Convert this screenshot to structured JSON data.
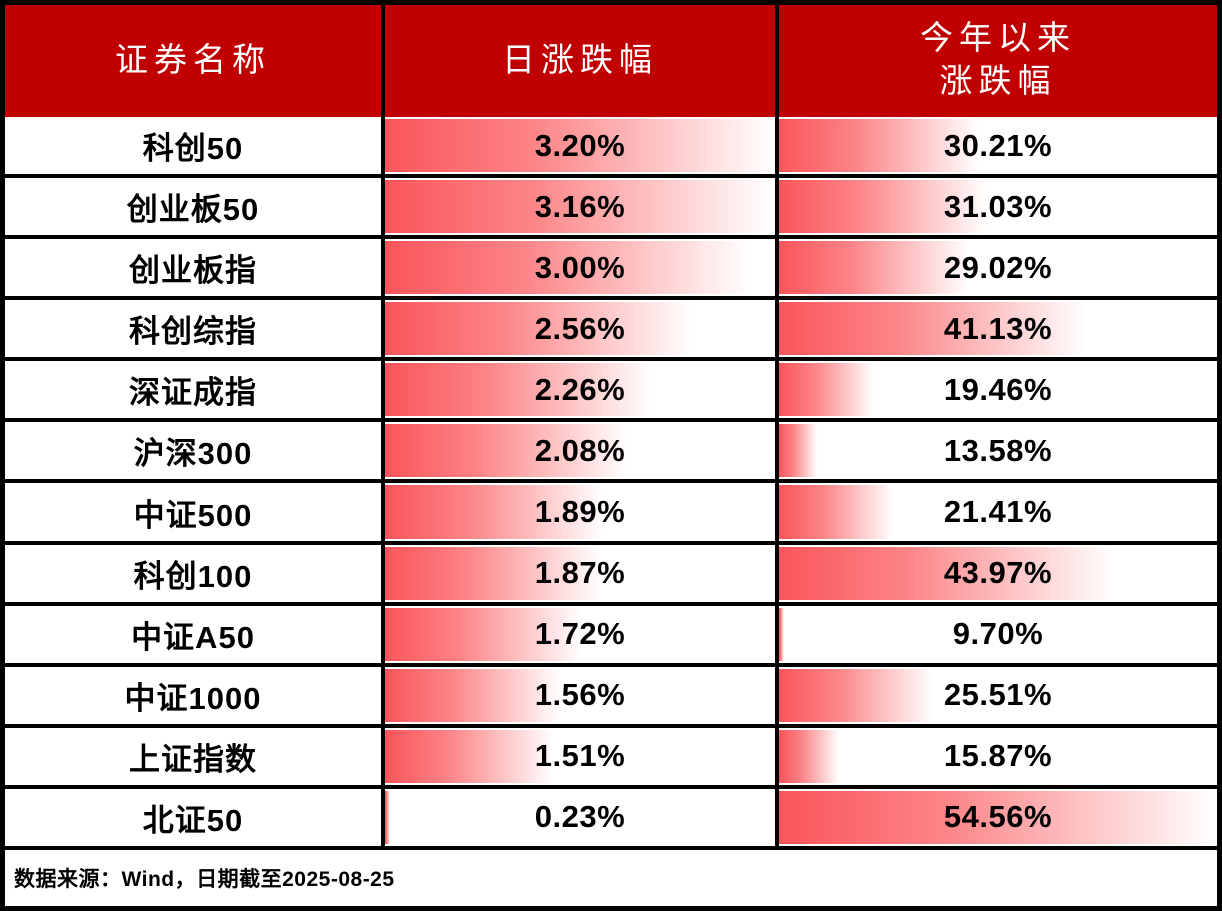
{
  "colors": {
    "header_bg": "#c00000",
    "header_text": "#ffffff",
    "databar_red": "#fa555a",
    "border": "#000000",
    "value_text": "#000000"
  },
  "table": {
    "columns": [
      {
        "label": "证券名称"
      },
      {
        "label": "日涨跌幅"
      },
      {
        "label_line1": "今年以来",
        "label_line2": "涨跌幅"
      }
    ],
    "rows": [
      {
        "name": "科创50",
        "daily": "3.20%",
        "ytd": "30.21%"
      },
      {
        "name": "创业板50",
        "daily": "3.16%",
        "ytd": "31.03%"
      },
      {
        "name": "创业板指",
        "daily": "3.00%",
        "ytd": "29.02%"
      },
      {
        "name": "科创综指",
        "daily": "2.56%",
        "ytd": "41.13%"
      },
      {
        "name": "深证成指",
        "daily": "2.26%",
        "ytd": "19.46%"
      },
      {
        "name": "沪深300",
        "daily": "2.08%",
        "ytd": "13.58%"
      },
      {
        "name": "中证500",
        "daily": "1.89%",
        "ytd": "21.41%"
      },
      {
        "name": "科创100",
        "daily": "1.87%",
        "ytd": "43.97%"
      },
      {
        "name": "中证A50",
        "daily": "1.72%",
        "ytd": "9.70%"
      },
      {
        "name": "中证1000",
        "daily": "1.56%",
        "ytd": "25.51%"
      },
      {
        "name": "上证指数",
        "daily": "1.51%",
        "ytd": "15.87%"
      },
      {
        "name": "北证50",
        "daily": "0.23%",
        "ytd": "54.56%"
      }
    ],
    "footer": "数据来源：Wind，日期截至2025-08-25"
  },
  "chart_data": {
    "type": "table",
    "title": "",
    "columns": [
      "证券名称",
      "日涨跌幅",
      "今年以来涨跌幅"
    ],
    "categories": [
      "科创50",
      "创业板50",
      "创业板指",
      "科创综指",
      "深证成指",
      "沪深300",
      "中证500",
      "科创100",
      "中证A50",
      "中证1000",
      "上证指数",
      "北证50"
    ],
    "series": [
      {
        "name": "日涨跌幅(%)",
        "values": [
          3.2,
          3.16,
          3.0,
          2.56,
          2.26,
          2.08,
          1.89,
          1.87,
          1.72,
          1.56,
          1.51,
          0.23
        ]
      },
      {
        "name": "今年以来涨跌幅(%)",
        "values": [
          30.21,
          31.03,
          29.02,
          41.13,
          19.46,
          13.58,
          21.41,
          43.97,
          9.7,
          25.51,
          15.87,
          54.56
        ]
      }
    ],
    "databar_scaling": "per-column min-max gradient data bars (red fading to white)",
    "source_note": "数据来源：Wind，日期截至2025-08-25"
  }
}
